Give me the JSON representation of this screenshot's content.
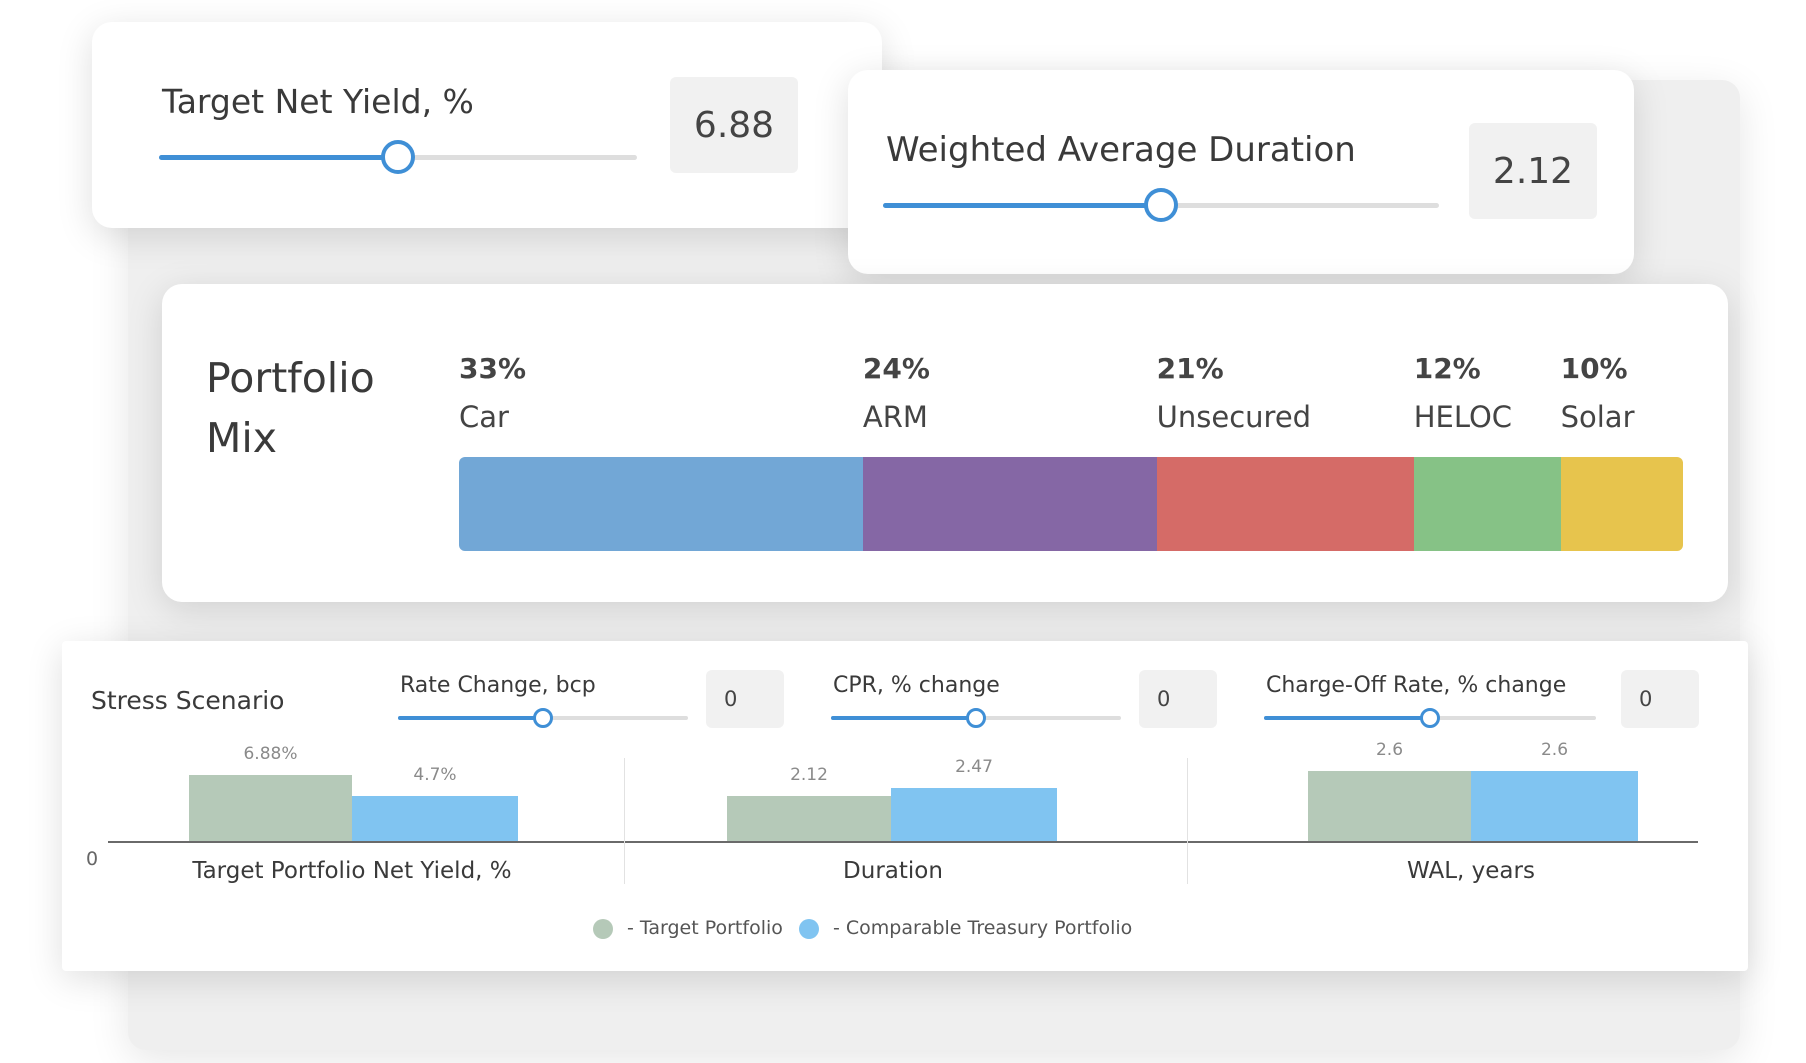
{
  "target_yield": {
    "label": "Target Net Yield, %",
    "value": "6.88",
    "slider_position": 0.5
  },
  "duration": {
    "label": "Weighted Average Duration",
    "value": "2.12",
    "slider_position": 0.5
  },
  "portfolio_mix": {
    "title_line1": "Portfolio",
    "title_line2": "Mix",
    "segments": [
      {
        "pct": "33%",
        "name": "Car",
        "share": 33,
        "color": "#72a7d6"
      },
      {
        "pct": "24%",
        "name": "ARM",
        "share": 24,
        "color": "#8567a5"
      },
      {
        "pct": "21%",
        "name": "Unsecured",
        "share": 21,
        "color": "#d56b67"
      },
      {
        "pct": "12%",
        "name": "HELOC",
        "share": 12,
        "color": "#86c286"
      },
      {
        "pct": "10%",
        "name": "Solar",
        "share": 10,
        "color": "#e7c44d"
      }
    ]
  },
  "stress": {
    "title": "Stress Scenario",
    "sliders": [
      {
        "label": "Rate Change, bcp",
        "value": "0",
        "slider_position": 0.5
      },
      {
        "label": "CPR, % change",
        "value": "0",
        "slider_position": 0.5
      },
      {
        "label": "Charge-Off Rate, % change",
        "value": "0",
        "slider_position": 0.5
      }
    ]
  },
  "chart_data": {
    "type": "bar",
    "categories": [
      "Target Portfolio Net Yield, %",
      "Duration",
      "WAL, years"
    ],
    "series": [
      {
        "name": "- Target Portfolio",
        "color": "#b5c9b8",
        "values": [
          6.88,
          2.12,
          2.6
        ],
        "labels": [
          "6.88%",
          "2.12",
          "2.6"
        ]
      },
      {
        "name": "- Comparable Treasury Portfolio",
        "color": "#80c4f1",
        "values": [
          4.7,
          2.47,
          2.6
        ],
        "labels": [
          "4.7%",
          "2.47",
          "2.6"
        ]
      }
    ],
    "axis_zero_label": "0",
    "legend_position": "bottom-center"
  }
}
